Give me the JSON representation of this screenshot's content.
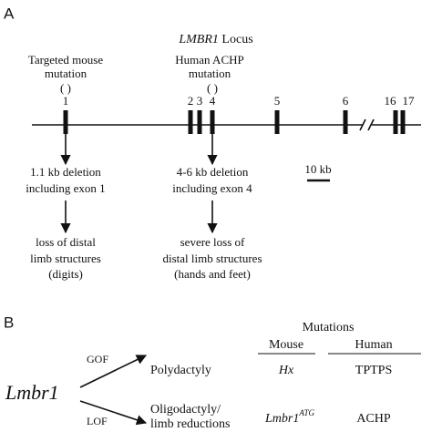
{
  "panel_a": {
    "label": "A",
    "title": {
      "gene": "LMBR1",
      "suffix": "Locus"
    },
    "mouse_mutation": {
      "lines": [
        "Targeted mouse",
        "mutation"
      ],
      "marker": "( )"
    },
    "human_mutation": {
      "lines": [
        "Human ACHP",
        "mutation"
      ],
      "marker": "( )"
    },
    "exons": [
      "1",
      "2",
      "3",
      "4",
      "5",
      "6",
      "16",
      "17"
    ],
    "scale_bar": "10 kb",
    "mouse_effect": {
      "deletion": [
        "1.1 kb deletion",
        "including exon 1"
      ],
      "outcome": [
        "loss of distal",
        "limb structures",
        "(digits)"
      ]
    },
    "human_effect": {
      "deletion": [
        "4-6 kb deletion",
        "including exon 4"
      ],
      "outcome": [
        "severe loss of",
        "distal limb structures",
        "(hands and feet)"
      ]
    }
  },
  "panel_b": {
    "label": "B",
    "gene": "Lmbr1",
    "gof": "GOF",
    "lof": "LOF",
    "phenotypes": [
      [
        "Polydactyly"
      ],
      [
        "Oligodactyly/",
        "limb reductions"
      ]
    ],
    "table": {
      "title": "Mutations",
      "headers": [
        "Mouse",
        "Human"
      ],
      "rows": [
        [
          {
            "name": "Hx"
          },
          "TPTPS"
        ],
        [
          {
            "name": "Lmbr1",
            "superscript": "ATG"
          },
          "ACHP"
        ]
      ]
    }
  }
}
